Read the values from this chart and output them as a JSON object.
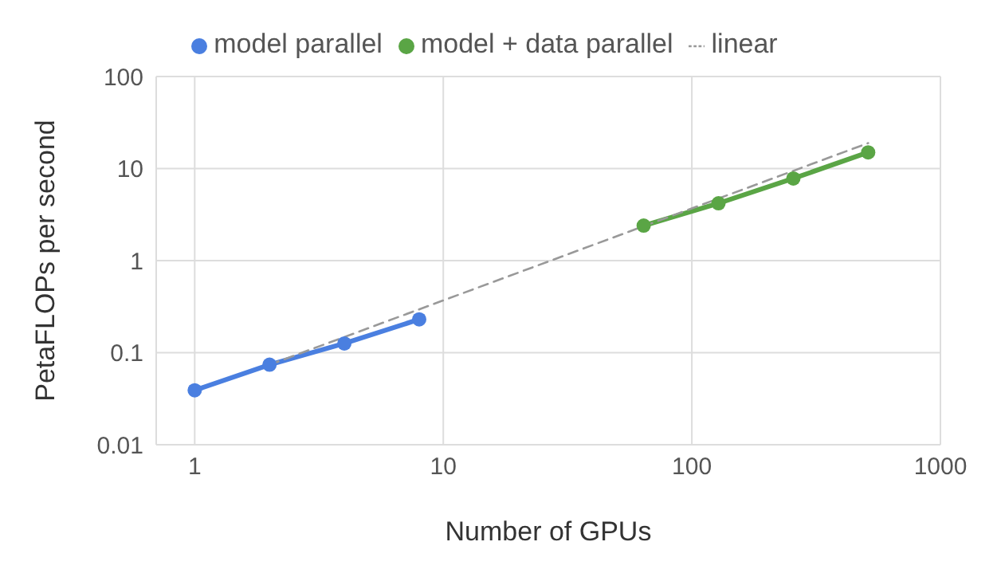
{
  "chart_data": {
    "type": "line",
    "xlabel": "Number of GPUs",
    "ylabel": "PetaFLOPs per second",
    "log": "xy",
    "xlim": [
      0.7,
      1000
    ],
    "xticks": [
      1,
      10,
      100,
      1000
    ],
    "ylim": [
      0.01,
      100
    ],
    "yticks": [
      0.01,
      0.1,
      1,
      10,
      100
    ],
    "grid": true,
    "legend": "top",
    "marker": "circle",
    "series": [
      {
        "name": "model parallel",
        "color": "#4a7fe0",
        "x": [
          1,
          2,
          4,
          8
        ],
        "values": [
          0.039,
          0.074,
          0.126,
          0.23
        ]
      },
      {
        "name": "model + data parallel",
        "color": "#5aa545",
        "x": [
          64,
          128,
          256,
          512
        ],
        "values": [
          2.4,
          4.2,
          7.8,
          15
        ]
      },
      {
        "name": "linear",
        "color": "#999999",
        "x": [
          2,
          512
        ],
        "values": [
          0.074,
          18.9
        ],
        "marker": "none",
        "line_style": "dashed"
      }
    ]
  }
}
